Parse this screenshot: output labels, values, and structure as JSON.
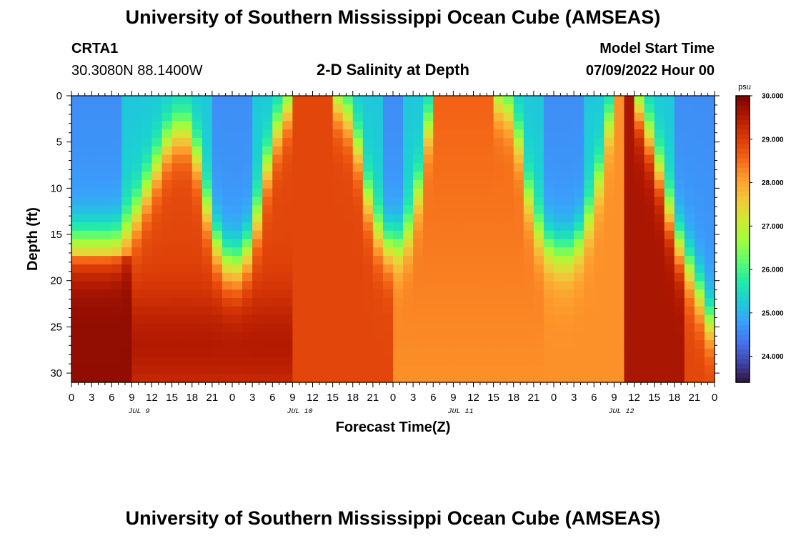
{
  "header": {
    "title": "University of Southern Mississippi Ocean Cube (AMSEAS)",
    "station_id": "CRTA1",
    "station_coords": "30.3080N  88.1400W",
    "plot_title": "2-D Salinity at Depth",
    "model_start_label": "Model Start Time",
    "model_start_value": "07/09/2022 Hour 00"
  },
  "footer": {
    "title": "University of Southern Mississippi Ocean Cube (AMSEAS)"
  },
  "colors": {
    "colormap": [
      "#30123b",
      "#4145ab",
      "#4675ed",
      "#39a2fc",
      "#1bcfd4",
      "#24eca6",
      "#61fc6c",
      "#a4fc3b",
      "#d1e834",
      "#f3c63a",
      "#fe9b2d",
      "#f36315",
      "#d93806",
      "#b11901",
      "#7a0402"
    ]
  },
  "chart_data": {
    "type": "heatmap",
    "title": "2-D Salinity at Depth",
    "xlabel": "Forecast Time(Z)",
    "ylabel": "Depth (ft)",
    "x_range_hours": [
      0,
      96
    ],
    "y_range_ft": [
      0,
      31
    ],
    "x_tick_hours": [
      0,
      3,
      6,
      9,
      12,
      15,
      18,
      21,
      24,
      27,
      30,
      33,
      36,
      39,
      42,
      45,
      48,
      51,
      54,
      57,
      60,
      63,
      66,
      69,
      72,
      75,
      78,
      81,
      84,
      87,
      90,
      93,
      96
    ],
    "x_tick_labels": [
      "0",
      "3",
      "6",
      "9",
      "12",
      "15",
      "18",
      "21",
      "0",
      "3",
      "6",
      "9",
      "12",
      "15",
      "18",
      "21",
      "0",
      "3",
      "6",
      "9",
      "12",
      "15",
      "18",
      "21",
      "0",
      "3",
      "6",
      "9",
      "12",
      "15",
      "18",
      "21",
      "0"
    ],
    "day_labels": [
      {
        "hour": 12,
        "label": "JUL 9"
      },
      {
        "hour": 36,
        "label": "JUL 10"
      },
      {
        "hour": 60,
        "label": "JUL 11"
      },
      {
        "hour": 84,
        "label": "JUL 12"
      }
    ],
    "y_ticks": [
      0,
      5,
      10,
      15,
      20,
      25,
      30
    ],
    "y_tick_labels": [
      "0",
      "5",
      "10",
      "15",
      "20",
      "25",
      "30"
    ],
    "colorbar": {
      "unit": "psu",
      "min": 23.4,
      "max": 30.0,
      "ticks": [
        30.0,
        29.0,
        28.0,
        27.0,
        26.0,
        25.0,
        24.0
      ],
      "tick_labels": [
        "30.000",
        "29.000",
        "28.000",
        "27.000",
        "26.000",
        "25.000",
        "24.000"
      ]
    },
    "fresh_lens_profile": {
      "description": "depth (ft) of low-salinity (blue) surface layer at forecast hours",
      "hours": [
        0,
        6,
        7.5,
        9,
        12,
        15,
        18,
        21,
        24,
        27,
        30,
        33,
        36,
        39,
        42,
        45,
        48,
        51,
        54,
        57,
        60,
        63,
        66,
        69,
        72,
        75,
        78,
        81,
        84,
        87,
        90,
        93,
        96
      ],
      "depth_ft": [
        16,
        16,
        15.6,
        14,
        9,
        4,
        4,
        15,
        19,
        16,
        5,
        0,
        0,
        0,
        3,
        14,
        17,
        14,
        0,
        0,
        0,
        0,
        2,
        14,
        17,
        17,
        12,
        0,
        0,
        6,
        15,
        20,
        26
      ]
    },
    "approx_values": {
      "surface_low_salinity_psu": 25.2,
      "mid_column_psu": 28.9,
      "bottom_high_salinity_psu": 29.8,
      "deep_mixed_psu": 28.2
    }
  }
}
